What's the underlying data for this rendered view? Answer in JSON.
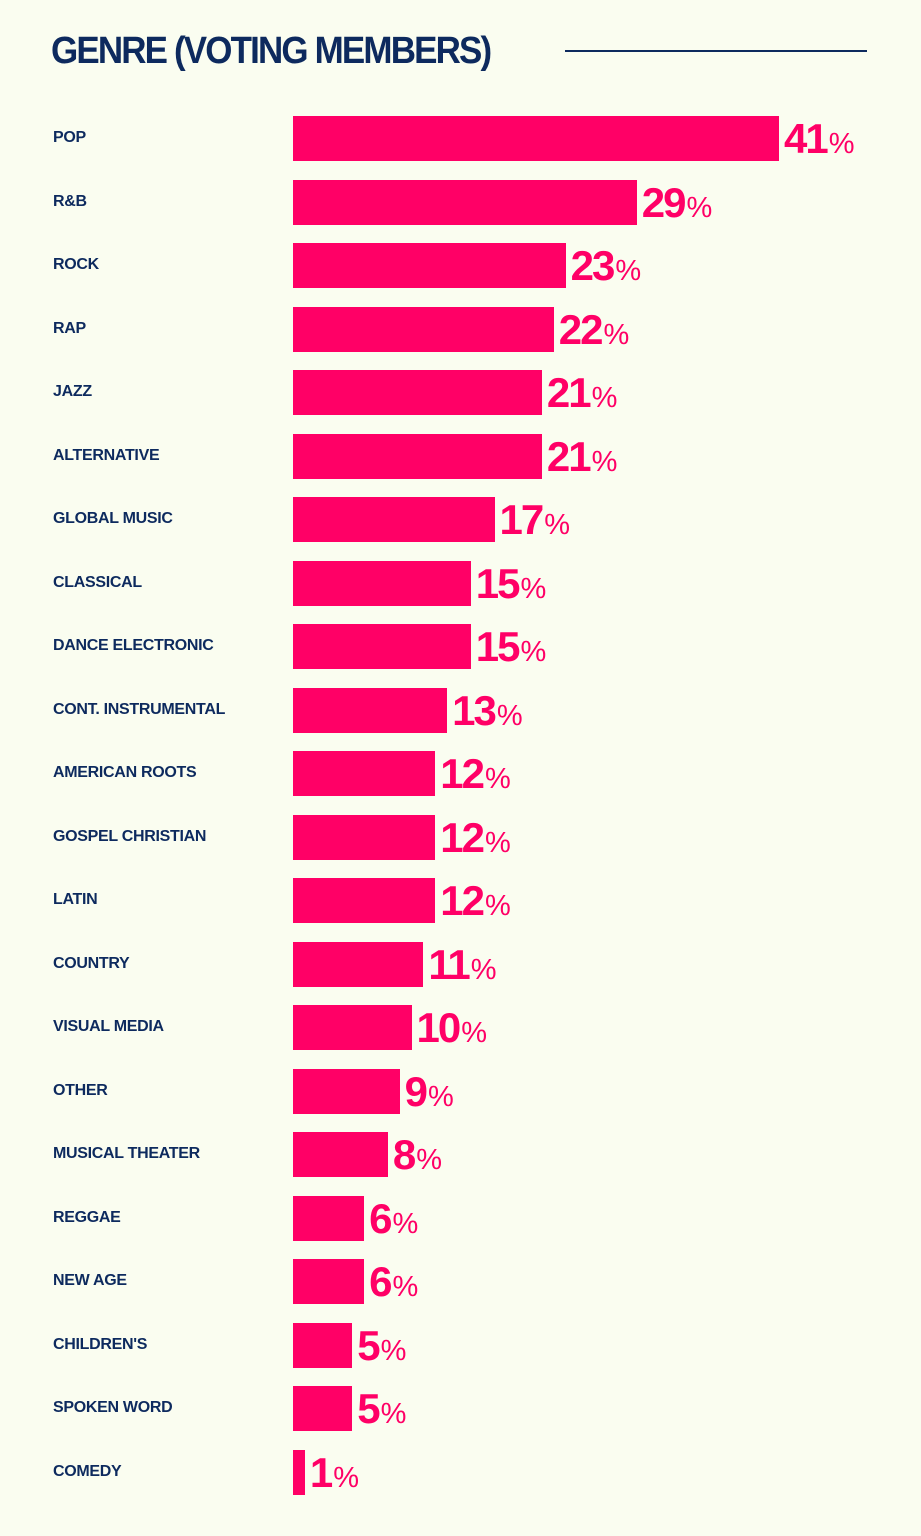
{
  "chart_data": {
    "type": "bar",
    "orientation": "horizontal",
    "title": "GENRE (VOTING MEMBERS)",
    "unit": "%",
    "categories": [
      "POP",
      "R&B",
      "ROCK",
      "RAP",
      "JAZZ",
      "ALTERNATIVE",
      "GLOBAL MUSIC",
      "CLASSICAL",
      "DANCE ELECTRONIC",
      "CONT. INSTRUMENTAL",
      "AMERICAN ROOTS",
      "GOSPEL CHRISTIAN",
      "LATIN",
      "COUNTRY",
      "VISUAL MEDIA",
      "OTHER",
      "MUSICAL THEATER",
      "REGGAE",
      "NEW AGE",
      "CHILDREN'S",
      "SPOKEN WORD",
      "COMEDY"
    ],
    "values": [
      41,
      29,
      23,
      22,
      21,
      21,
      17,
      15,
      15,
      13,
      12,
      12,
      12,
      11,
      10,
      9,
      8,
      6,
      6,
      5,
      5,
      1
    ],
    "xlim": [
      0,
      41
    ],
    "grid": false,
    "colors": {
      "bar": "#ff0066",
      "text": "#0d2a5e",
      "background": "#fafdf0"
    }
  }
}
